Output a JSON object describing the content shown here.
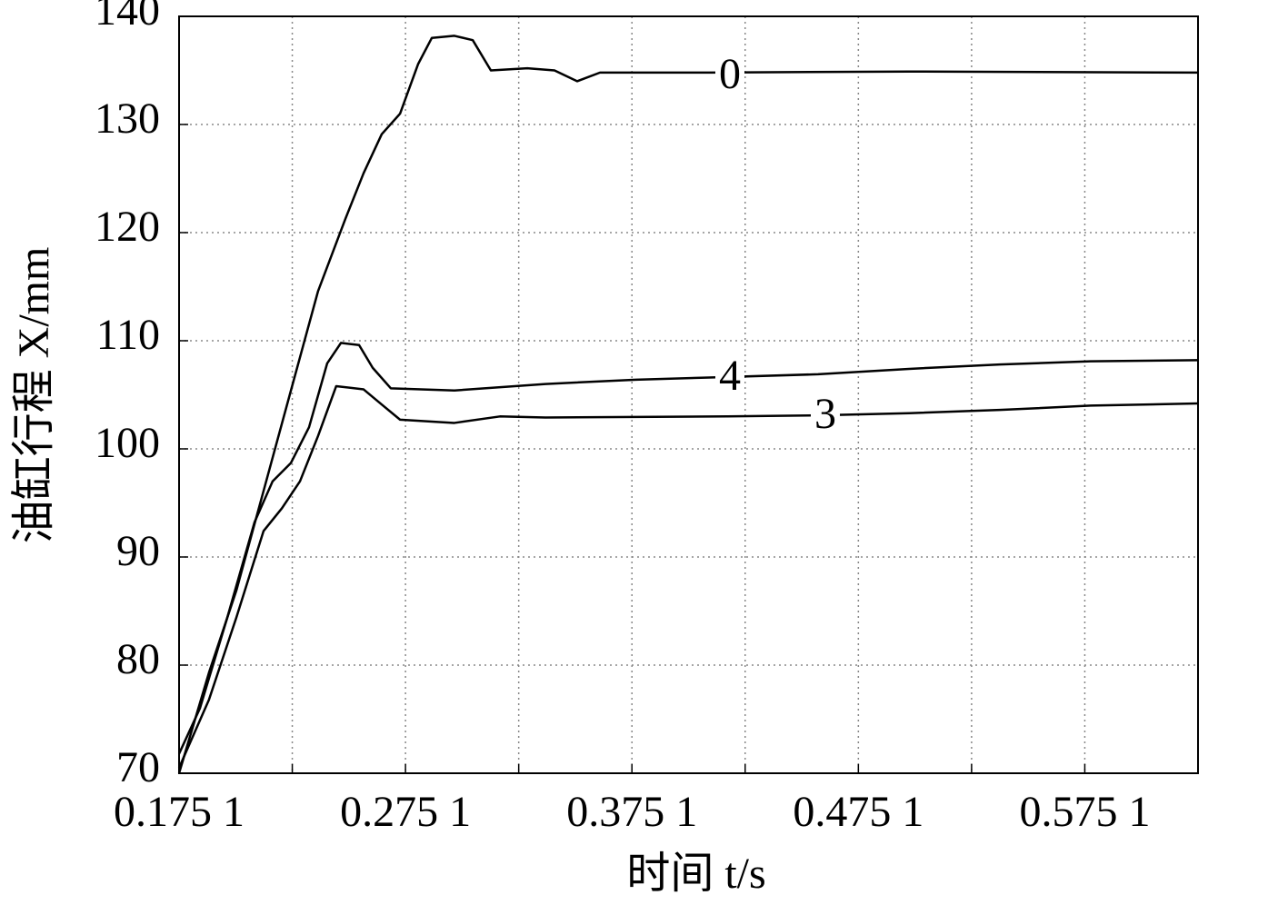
{
  "chart_data": {
    "type": "line",
    "xlabel": "时间 t/s",
    "ylabel": "油缸行程 X/mm",
    "xlim": [
      0.1751,
      0.6251
    ],
    "ylim": [
      70,
      140
    ],
    "xticks": [
      {
        "value": 0.1751,
        "label": "0.175 1"
      },
      {
        "value": 0.2251,
        "label": null
      },
      {
        "value": 0.2751,
        "label": "0.275 1"
      },
      {
        "value": 0.3251,
        "label": null
      },
      {
        "value": 0.3751,
        "label": "0.375 1"
      },
      {
        "value": 0.4251,
        "label": null
      },
      {
        "value": 0.4751,
        "label": "0.475 1"
      },
      {
        "value": 0.5251,
        "label": null
      },
      {
        "value": 0.5751,
        "label": "0.575 1"
      }
    ],
    "yticks": [
      70,
      80,
      90,
      100,
      110,
      120,
      130,
      140
    ],
    "grid": true,
    "series": [
      {
        "name": "0",
        "color": "#000000",
        "x": [
          0.1751,
          0.1883,
          0.2004,
          0.2124,
          0.2245,
          0.2365,
          0.2486,
          0.2566,
          0.2646,
          0.2727,
          0.2807,
          0.2867,
          0.2967,
          0.3048,
          0.3128,
          0.3289,
          0.3409,
          0.3509,
          0.361,
          0.4091,
          0.4975,
          0.6251
        ],
        "values": [
          70,
          79.3,
          86.9,
          96.1,
          105.4,
          114.6,
          121.3,
          125.5,
          129.1,
          131.0,
          135.6,
          138.0,
          138.2,
          137.8,
          135.0,
          135.2,
          135.0,
          134.0,
          134.8,
          134.8,
          134.9,
          134.8
        ]
      },
      {
        "name": "4",
        "color": "#000000",
        "x": [
          0.1751,
          0.1843,
          0.1964,
          0.2084,
          0.2164,
          0.2245,
          0.2325,
          0.2405,
          0.2466,
          0.2546,
          0.2606,
          0.2686,
          0.2967,
          0.3369,
          0.377,
          0.4091,
          0.4573,
          0.4975,
          0.5376,
          0.5777,
          0.6251
        ],
        "values": [
          71.8,
          76.0,
          84.4,
          93.2,
          97.0,
          98.7,
          102.0,
          107.9,
          109.8,
          109.6,
          107.5,
          105.6,
          105.4,
          106.0,
          106.4,
          106.6,
          106.9,
          107.4,
          107.8,
          108.1,
          108.2
        ]
      },
      {
        "name": "3",
        "color": "#000000",
        "x": [
          0.1751,
          0.1883,
          0.2004,
          0.2124,
          0.2205,
          0.2285,
          0.2365,
          0.2445,
          0.2566,
          0.2646,
          0.2727,
          0.2967,
          0.3168,
          0.3369,
          0.4172,
          0.4573,
          0.4975,
          0.5376,
          0.5777,
          0.6251
        ],
        "values": [
          70.5,
          76.8,
          84.4,
          92.4,
          94.5,
          97.0,
          101.2,
          105.8,
          105.5,
          104.1,
          102.7,
          102.4,
          103.0,
          102.9,
          103.0,
          103.1,
          103.3,
          103.6,
          104.0,
          104.2
        ]
      }
    ]
  }
}
